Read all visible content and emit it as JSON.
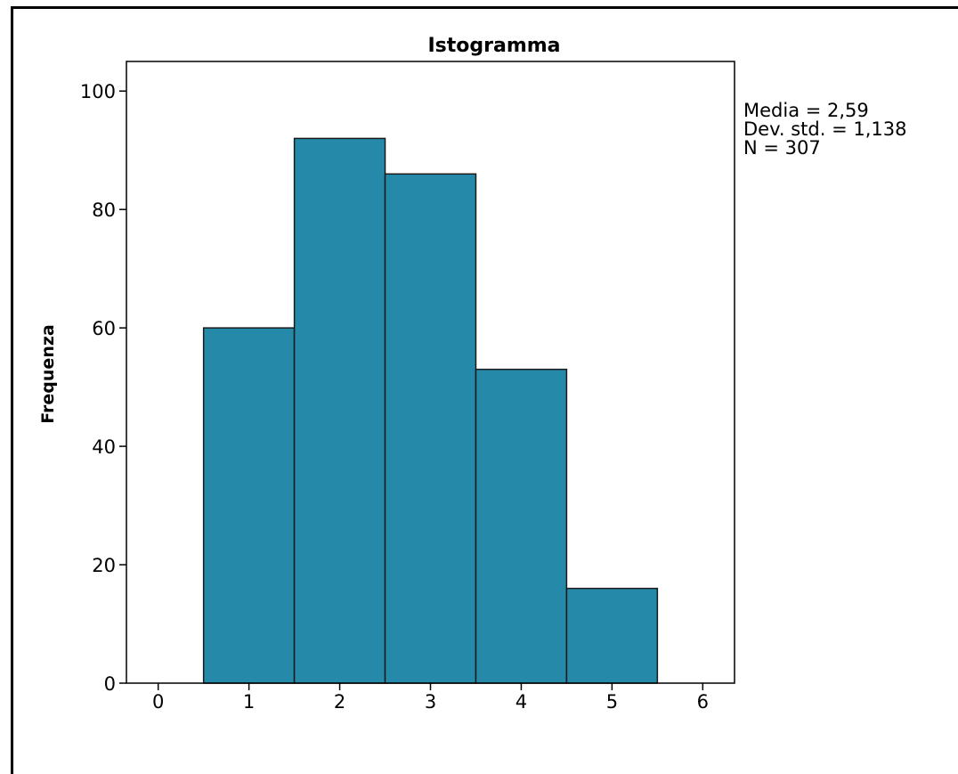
{
  "chart_data": {
    "type": "bar",
    "title": "Istogramma",
    "xlabel": "",
    "ylabel": "Frequenza",
    "xlim": [
      -0.35,
      6.35
    ],
    "ylim": [
      0,
      105
    ],
    "x_ticks": [
      0,
      1,
      2,
      3,
      4,
      5,
      6
    ],
    "y_ticks": [
      0,
      20,
      40,
      60,
      80,
      100
    ],
    "bin_width": 1,
    "x": [
      1,
      2,
      3,
      4,
      5
    ],
    "values": [
      60,
      92,
      86,
      53,
      16
    ],
    "bar_color": "#2589aa",
    "bar_edge_color": "#1a1a1a",
    "grid": false,
    "stats": {
      "mean": "Media = 2,59",
      "std": "Dev. std. = 1,138",
      "n": "N = 307"
    }
  }
}
